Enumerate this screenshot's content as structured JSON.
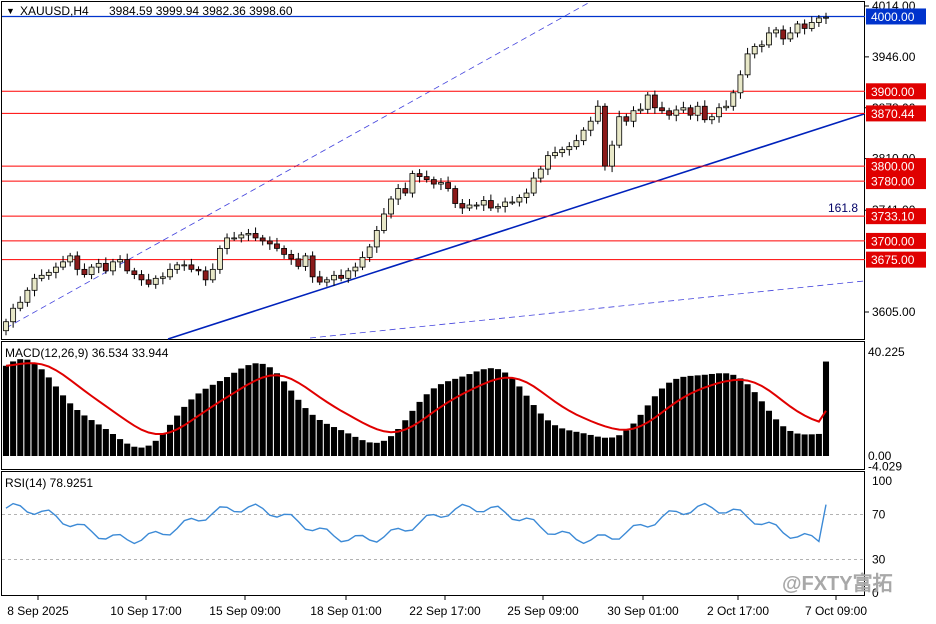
{
  "header": {
    "symbol": "XAUUSD,H4",
    "ohlc": "3984.59 3999.94 3982.36 3998.60"
  },
  "colors": {
    "candle_up": "#e8e8c8",
    "candle_down": "#8b1a1a",
    "wick": "#000000",
    "hline": "#ff0000",
    "hline_box": "#e00000",
    "current_box": "#0033cc",
    "trend": "#0022bb",
    "dashed_channel": "#4444dd",
    "macd_hist": "#000000",
    "macd_signal": "#e00000",
    "rsi": "#3c8ad6"
  },
  "price_axis": {
    "ticks": [
      "4014.00",
      "3946.00",
      "3878.00",
      "3810.00",
      "3741.00",
      "3605.00"
    ]
  },
  "levels": [
    {
      "label": "4000.00",
      "value": 4000.0,
      "style": "current"
    },
    {
      "label": "3900.00",
      "value": 3900.0,
      "style": "red"
    },
    {
      "label": "3870.44",
      "value": 3870.44,
      "style": "red"
    },
    {
      "label": "3800.00",
      "value": 3800.0,
      "style": "red"
    },
    {
      "label": "3780.00",
      "value": 3780.0,
      "style": "red"
    },
    {
      "label": "3733.10",
      "value": 3733.1,
      "style": "red"
    },
    {
      "label": "3700.00",
      "value": 3700.0,
      "style": "red"
    },
    {
      "label": "3675.00",
      "value": 3675.0,
      "style": "red"
    }
  ],
  "fib_label": "161.8",
  "macd": {
    "title": "MACD(12,26,9) 36.534 33.944",
    "ticks": [
      "40.225",
      "0.00",
      "-4.029"
    ]
  },
  "rsi": {
    "title": "RSI(14) 78.9251",
    "ticks": [
      "100",
      "70",
      "30",
      "0"
    ]
  },
  "x_axis": {
    "labels": [
      "8 Sep 2025",
      "10 Sep 17:00",
      "15 Sep 09:00",
      "18 Sep 01:00",
      "22 Sep 17:00",
      "25 Sep 09:00",
      "30 Sep 01:00",
      "2 Oct 17:00",
      "7 Oct 09:00"
    ]
  },
  "watermark": "@FXTY富拓",
  "chart_data": {
    "type": "candlestick",
    "title": "XAUUSD,H4",
    "ylim": [
      3575,
      4020
    ],
    "x": [
      "8 Sep 2025",
      "10 Sep 17:00",
      "15 Sep 09:00",
      "18 Sep 01:00",
      "22 Sep 17:00",
      "25 Sep 09:00",
      "30 Sep 01:00",
      "2 Oct 17:00",
      "7 Oct 09:00"
    ],
    "price_closes": [
      3592,
      3610,
      3618,
      3634,
      3650,
      3654,
      3658,
      3665,
      3672,
      3680,
      3662,
      3655,
      3665,
      3670,
      3660,
      3672,
      3675,
      3660,
      3655,
      3648,
      3642,
      3650,
      3652,
      3662,
      3668,
      3668,
      3662,
      3660,
      3648,
      3662,
      3690,
      3704,
      3704,
      3708,
      3710,
      3704,
      3700,
      3696,
      3690,
      3682,
      3676,
      3666,
      3680,
      3652,
      3645,
      3648,
      3654,
      3650,
      3660,
      3665,
      3678,
      3692,
      3714,
      3736,
      3756,
      3770,
      3764,
      3790,
      3786,
      3782,
      3776,
      3778,
      3770,
      3750,
      3744,
      3748,
      3748,
      3754,
      3744,
      3746,
      3752,
      3752,
      3758,
      3764,
      3784,
      3796,
      3814,
      3818,
      3822,
      3826,
      3834,
      3848,
      3860,
      3880,
      3800,
      3828,
      3866,
      3860,
      3874,
      3876,
      3895,
      3878,
      3874,
      3868,
      3875,
      3878,
      3868,
      3880,
      3862,
      3866,
      3878,
      3880,
      3898,
      3922,
      3950,
      3960,
      3962,
      3978,
      3982,
      3970,
      3978,
      3990,
      3984,
      3992,
      3998,
      3999
    ],
    "levels": [
      4000.0,
      3900.0,
      3870.44,
      3800.0,
      3780.0,
      3733.1,
      3700.0,
      3675.0
    ],
    "trendline": {
      "from": [
        "8 Sep 2025",
        3545
      ],
      "to": [
        "7 Oct 09:00",
        3870
      ]
    },
    "channel_upper": {
      "from": [
        "8 Sep 2025",
        3590
      ],
      "to": [
        "30 Sep 01:00",
        4060
      ]
    },
    "channel_lower": {
      "from": [
        "18 Sep 01:00",
        3580
      ],
      "to": [
        "7 Oct 09:00",
        3640
      ]
    },
    "macd": {
      "value": 36.534,
      "signal": 33.944,
      "ylim": [
        -4.029,
        40.225
      ]
    },
    "rsi": {
      "value": 78.9251,
      "ylim": [
        0,
        100
      ]
    }
  }
}
